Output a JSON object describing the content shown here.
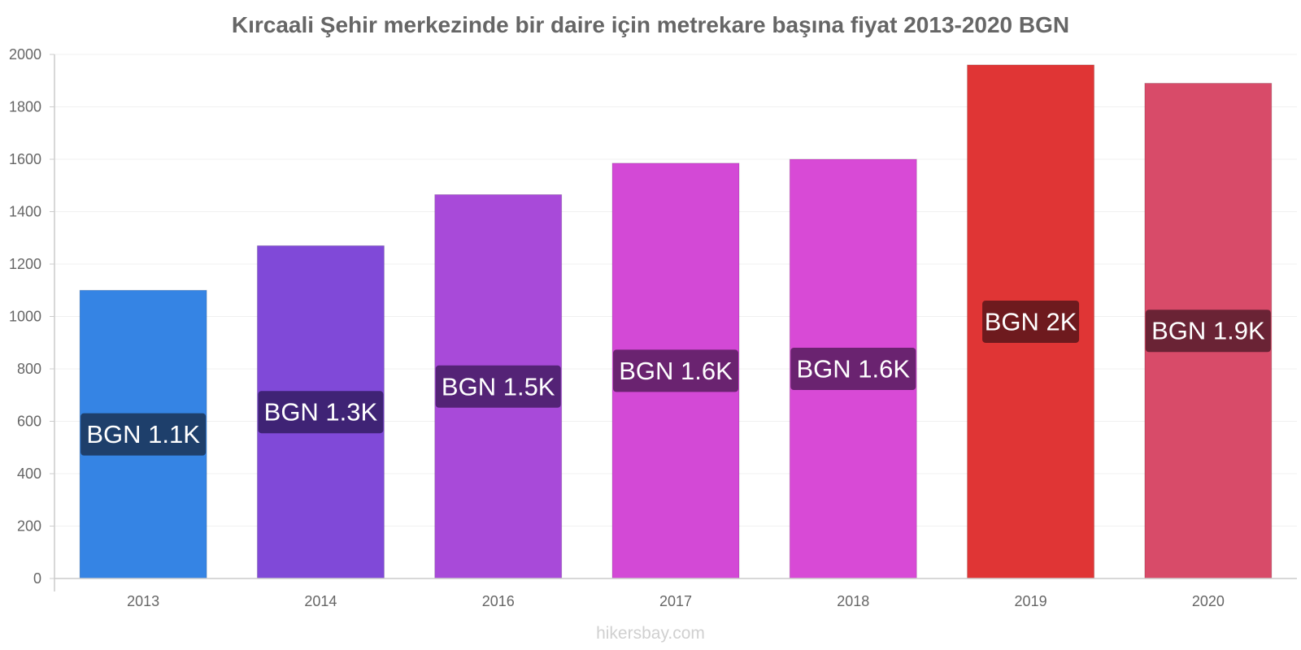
{
  "chart_data": {
    "type": "bar",
    "title": "Kırcaali Şehir merkezinde bir daire için metrekare başına fiyat 2013-2020 BGN",
    "categories": [
      "2013",
      "2014",
      "2016",
      "2017",
      "2018",
      "2019",
      "2020"
    ],
    "values": [
      1100,
      1270,
      1465,
      1585,
      1600,
      1960,
      1890
    ],
    "data_labels": [
      "BGN 1.1K",
      "BGN 1.3K",
      "BGN 1.5K",
      "BGN 1.6K",
      "BGN 1.6K",
      "BGN 2K",
      "BGN 1.9K"
    ],
    "bar_colors": [
      "#3584e4",
      "#8049d8",
      "#a84ad9",
      "#d349d6",
      "#d84ad6",
      "#e03535",
      "#d84b69"
    ],
    "label_bg_colors": [
      "#1e3f6b",
      "#3f2375",
      "#542376",
      "#6a2370",
      "#6a2370",
      "#6e1a1e",
      "#6a2335"
    ],
    "ylim": [
      0,
      2000
    ],
    "yticks": [
      0,
      200,
      400,
      600,
      800,
      1000,
      1200,
      1400,
      1600,
      1800,
      2000
    ],
    "grid": true,
    "xlabel": "",
    "ylabel": ""
  },
  "watermark": "hikersbay.com"
}
